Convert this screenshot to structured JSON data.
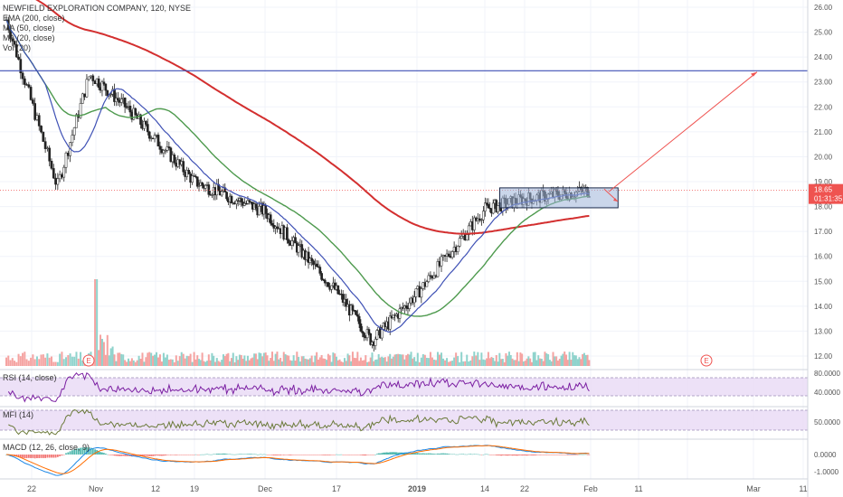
{
  "chart_data": [
    {
      "type": "candlestick",
      "title": "NEWFIELD EXPLORATION COMPANY, 120, NYSE",
      "indicators": [
        "EMA (200, close)",
        "MA (50, close)",
        "MA (20, close)",
        "Vol (20)"
      ],
      "y_ticks": [
        "26.00",
        "25.00",
        "24.00",
        "23.00",
        "22.00",
        "21.00",
        "20.00",
        "19.00",
        "18.00",
        "17.00",
        "16.00",
        "15.00",
        "14.00",
        "13.00",
        "12.00"
      ],
      "ylim": [
        11.6,
        26.2
      ],
      "last_price": "18.65",
      "countdown": "01:31:35",
      "horizontal_line": 23.45,
      "earnings_markers": [
        "E",
        "E"
      ],
      "key_points": [
        {
          "date": "Oct 18",
          "price": 25.5
        },
        {
          "date": "Oct 26",
          "price": 18.8
        },
        {
          "date": "Oct 31",
          "price": 23.3
        },
        {
          "date": "Nov 7",
          "price": 21.9
        },
        {
          "date": "Nov 19",
          "price": 19.0
        },
        {
          "date": "Dec 3",
          "price": 17.8
        },
        {
          "date": "Dec 17",
          "price": 14.6
        },
        {
          "date": "Dec 24",
          "price": 12.6
        },
        {
          "date": "Jan 2",
          "price": 14.5
        },
        {
          "date": "Jan 14",
          "price": 17.9
        },
        {
          "date": "Jan 22",
          "price": 18.3
        },
        {
          "date": "Feb 4",
          "price": 18.65
        }
      ],
      "consolidation_box": {
        "from": "Jan 17",
        "to": "Feb 8",
        "low": 17.95,
        "high": 18.75
      },
      "projection_arrow": {
        "from_date": "Feb 8",
        "from_price": 18.6,
        "to_date": "Mar 1",
        "to_price": 23.4
      }
    },
    {
      "type": "line",
      "title": "RSI (14, close)",
      "y_ticks": [
        "80.0000",
        "40.0000"
      ],
      "bands": [
        70,
        30
      ]
    },
    {
      "type": "line",
      "title": "MFI (14)",
      "y_ticks": [
        "50.0000"
      ],
      "bands": [
        80,
        20
      ]
    },
    {
      "type": "histogram",
      "title": "MACD (12, 26, close, 9)",
      "y_ticks": [
        "0.0000",
        "-1.0000"
      ]
    }
  ],
  "time_axis": [
    "22",
    "Nov",
    "12",
    "19",
    "Dec",
    "17",
    "2019",
    "14",
    "22",
    "Feb",
    "11",
    "Mar",
    "11"
  ],
  "colors": {
    "up": "#26a69a",
    "down": "#ef5350",
    "ema200": "#d32f2f",
    "ma50": "#4e9a4e",
    "ma20": "#3f51b5",
    "hline": "#3f51b5",
    "rsi": "#7b1fa2",
    "mfi": "#6b7a3a",
    "macd": "#1e88e5",
    "signal": "#ff6d00"
  }
}
